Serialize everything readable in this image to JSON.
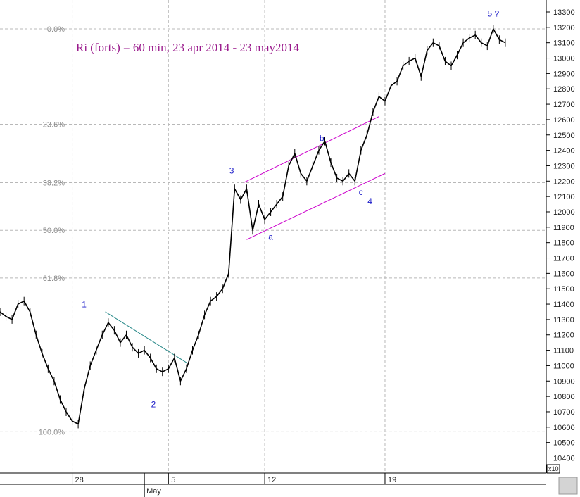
{
  "chart_data": {
    "type": "line",
    "title": "Ri (forts) = 60 min, 23 apr 2014 - 23 may2014",
    "ylim": [
      10360,
      13270
    ],
    "y_ticks": [
      10400,
      10500,
      10600,
      10700,
      10800,
      10900,
      11000,
      11100,
      11200,
      11300,
      11400,
      11500,
      11600,
      11700,
      11800,
      11900,
      12000,
      12100,
      12200,
      12300,
      12400,
      12500,
      12600,
      12700,
      12800,
      12900,
      13000,
      13100,
      13200,
      13300
    ],
    "y_scale_label": "x10",
    "xlim": [
      0,
      172
    ],
    "x_ticks": [
      {
        "label": "28",
        "x": 24
      },
      {
        "label": "5",
        "x": 56
      },
      {
        "label": "12",
        "x": 88
      },
      {
        "label": "19",
        "x": 128
      }
    ],
    "x_month_label": {
      "label": "May",
      "x": 48
    },
    "fib_levels": [
      {
        "label": "0.0%",
        "value": 13190
      },
      {
        "label": "23.6%",
        "value": 12570
      },
      {
        "label": "38.2%",
        "value": 12190
      },
      {
        "label": "50.0%",
        "value": 11880
      },
      {
        "label": "61.8%",
        "value": 11570
      },
      {
        "label": "100.0%",
        "value": 10570
      }
    ],
    "wave_labels": [
      {
        "label": "1",
        "x": 28,
        "value": 11380
      },
      {
        "label": "2",
        "x": 51,
        "value": 10730
      },
      {
        "label": "3",
        "x": 77,
        "value": 12250
      },
      {
        "label": "a",
        "x": 90,
        "value": 11820
      },
      {
        "label": "b",
        "x": 107,
        "value": 12460
      },
      {
        "label": "c",
        "x": 120,
        "value": 12110
      },
      {
        "label": "4",
        "x": 123,
        "value": 12050
      },
      {
        "label": "5 ?",
        "x": 164,
        "value": 13270
      }
    ],
    "trendlines": [
      {
        "name": "downtrend",
        "color": "#2a8a8a",
        "points": [
          [
            35,
            11350
          ],
          [
            62,
            11020
          ]
        ]
      },
      {
        "name": "channel-upper",
        "color": "#cc00cc",
        "points": [
          [
            81,
            12190
          ],
          [
            126,
            12620
          ]
        ]
      },
      {
        "name": "channel-lower",
        "color": "#cc00cc",
        "points": [
          [
            82,
            11820
          ],
          [
            128,
            12250
          ]
        ]
      }
    ],
    "series": [
      {
        "x": [
          0,
          2,
          4,
          6,
          8,
          10,
          12,
          14,
          16,
          18,
          20,
          22,
          24,
          26,
          28,
          30,
          32,
          34,
          36,
          38,
          40,
          42,
          44,
          46,
          48,
          50,
          52,
          54,
          56,
          58,
          60,
          62,
          64,
          66,
          68,
          70,
          72,
          74,
          76,
          78,
          80,
          82,
          84,
          86,
          88,
          90,
          92,
          94,
          96,
          98,
          100,
          102,
          104,
          106,
          108,
          110,
          112,
          114,
          116,
          118,
          120,
          122,
          124,
          126,
          128,
          130,
          132,
          134,
          136,
          138,
          140,
          142,
          144,
          146,
          148,
          150,
          152,
          154,
          156,
          158,
          160,
          162,
          164,
          166,
          168
        ],
        "values": [
          11350,
          11320,
          11300,
          11400,
          11420,
          11350,
          11200,
          11080,
          10980,
          10900,
          10780,
          10700,
          10640,
          10620,
          10850,
          11000,
          11100,
          11200,
          11280,
          11230,
          11150,
          11200,
          11120,
          11080,
          11100,
          11050,
          10980,
          10960,
          10980,
          11050,
          10900,
          10980,
          11100,
          11200,
          11330,
          11420,
          11450,
          11500,
          11600,
          12150,
          12080,
          12150,
          11880,
          12050,
          11950,
          12000,
          12050,
          12100,
          12300,
          12380,
          12250,
          12200,
          12300,
          12400,
          12460,
          12320,
          12220,
          12200,
          12250,
          12200,
          12400,
          12500,
          12650,
          12750,
          12720,
          12820,
          12850,
          12950,
          12980,
          13000,
          12880,
          13050,
          13100,
          13080,
          12980,
          12950,
          13020,
          13100,
          13130,
          13150,
          13100,
          13080,
          13190,
          13120,
          13100
        ]
      }
    ]
  }
}
